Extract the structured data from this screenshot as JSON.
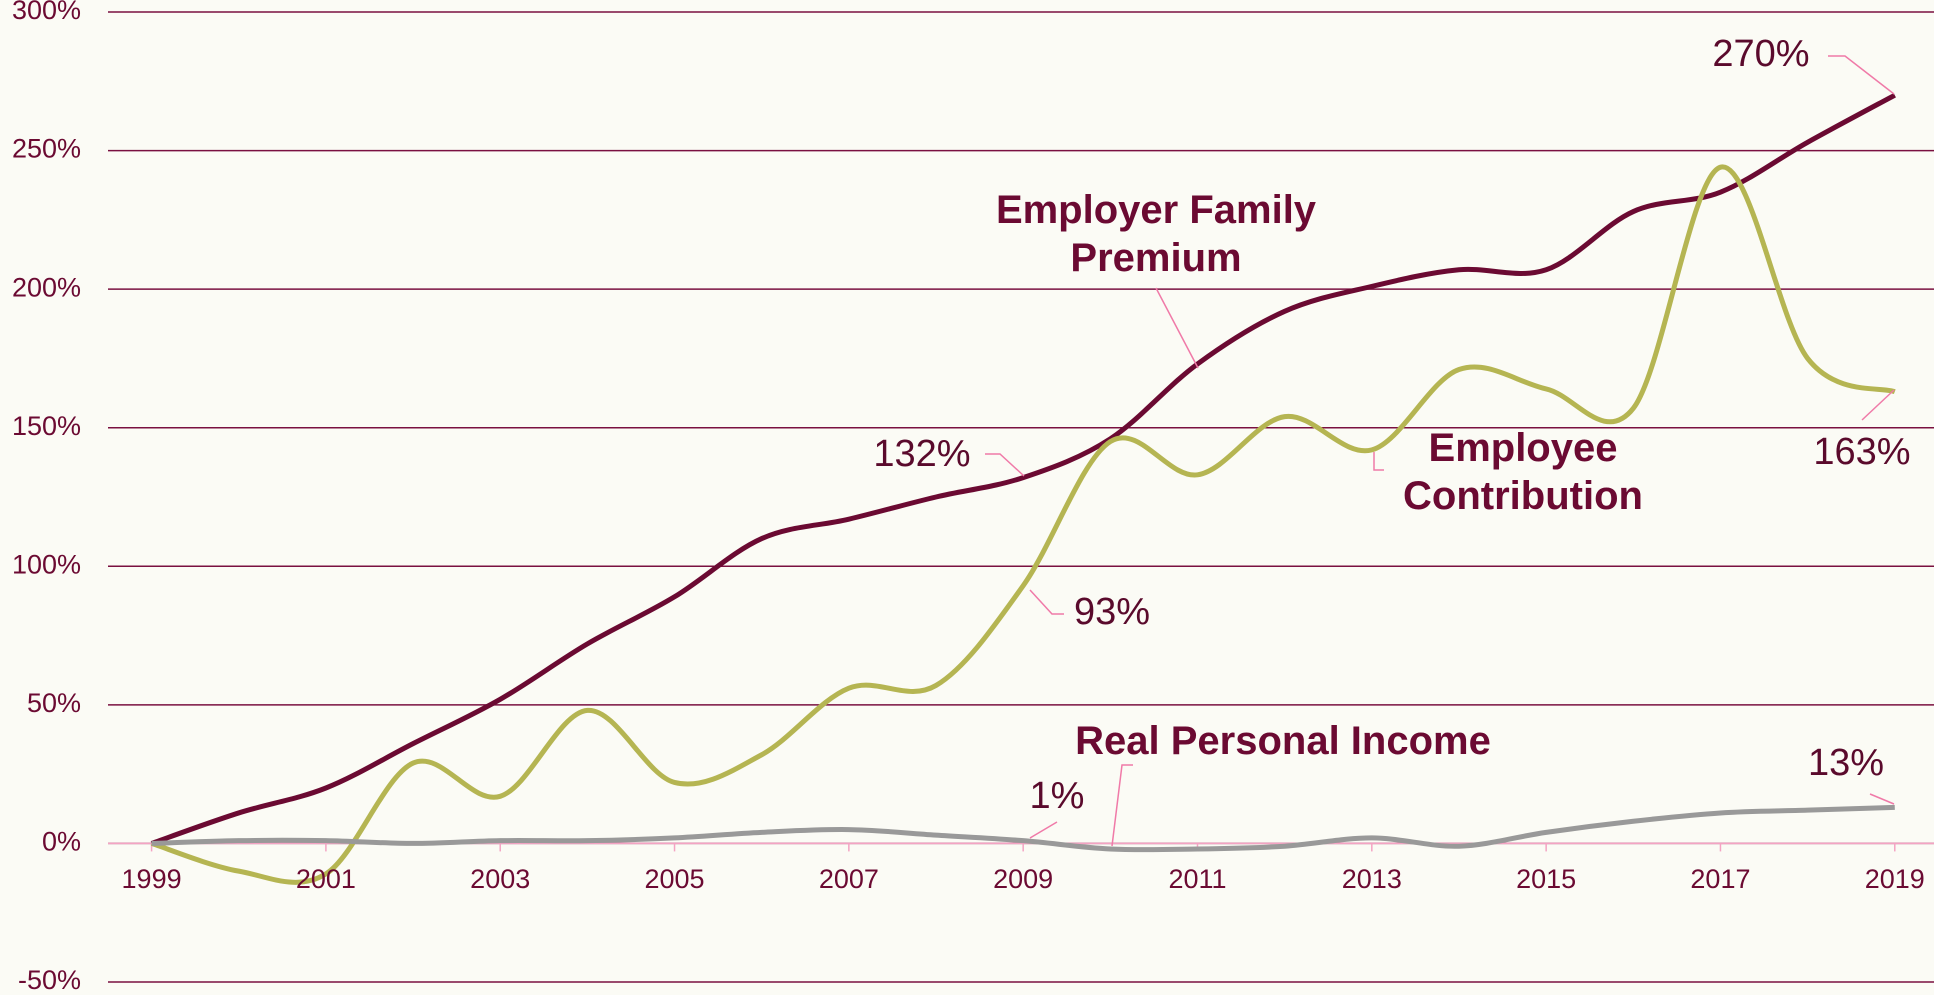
{
  "chart_data": {
    "type": "line",
    "x": [
      1999,
      2000,
      2001,
      2002,
      2003,
      2004,
      2005,
      2006,
      2007,
      2008,
      2009,
      2010,
      2011,
      2012,
      2013,
      2014,
      2015,
      2016,
      2017,
      2018,
      2019
    ],
    "xlim": [
      1998.5,
      2019.45
    ],
    "xticks": [
      1999,
      2001,
      2003,
      2005,
      2007,
      2009,
      2011,
      2013,
      2015,
      2017,
      2019
    ],
    "ylim": [
      -50,
      300
    ],
    "yticks": [
      {
        "value": -50,
        "label": "-50%"
      },
      {
        "value": 0,
        "label": "0%"
      },
      {
        "value": 50,
        "label": "50%"
      },
      {
        "value": 100,
        "label": "100%"
      },
      {
        "value": 150,
        "label": "150%"
      },
      {
        "value": 200,
        "label": "200%"
      },
      {
        "value": 250,
        "label": "250%"
      },
      {
        "value": 300,
        "label": "300%"
      }
    ],
    "grid": true,
    "series": [
      {
        "name": "Employer Family Premium",
        "color": "#6b0a32",
        "values": [
          0,
          11,
          20,
          36,
          52,
          72,
          89,
          110,
          117,
          125,
          132,
          146,
          173,
          192,
          201,
          207,
          207,
          228,
          235,
          253,
          270
        ],
        "value_labels": [
          null,
          null,
          null,
          null,
          null,
          null,
          null,
          null,
          null,
          null,
          "132%",
          null,
          null,
          null,
          null,
          null,
          null,
          null,
          null,
          null,
          "270%"
        ]
      },
      {
        "name": "Employee Contribution",
        "color": "#b5b552",
        "values": [
          0,
          -10,
          -11,
          29,
          17,
          48,
          22,
          32,
          56,
          57,
          93,
          145,
          133,
          154,
          142,
          171,
          164,
          157,
          244,
          175,
          163
        ],
        "value_labels": [
          null,
          null,
          null,
          null,
          null,
          null,
          null,
          null,
          null,
          null,
          "93%",
          null,
          null,
          null,
          null,
          null,
          null,
          null,
          null,
          null,
          "163%"
        ]
      },
      {
        "name": "Real Personal Income",
        "color": "#999999",
        "values": [
          0,
          1,
          1,
          0,
          1,
          1,
          2,
          4,
          5,
          3,
          1,
          -2,
          -2,
          -1,
          2,
          -1,
          4,
          8,
          11,
          12,
          13
        ],
        "value_labels": [
          null,
          null,
          null,
          null,
          null,
          null,
          null,
          null,
          null,
          null,
          "1%",
          null,
          null,
          null,
          null,
          null,
          null,
          null,
          null,
          null,
          "13%"
        ]
      }
    ]
  }
}
